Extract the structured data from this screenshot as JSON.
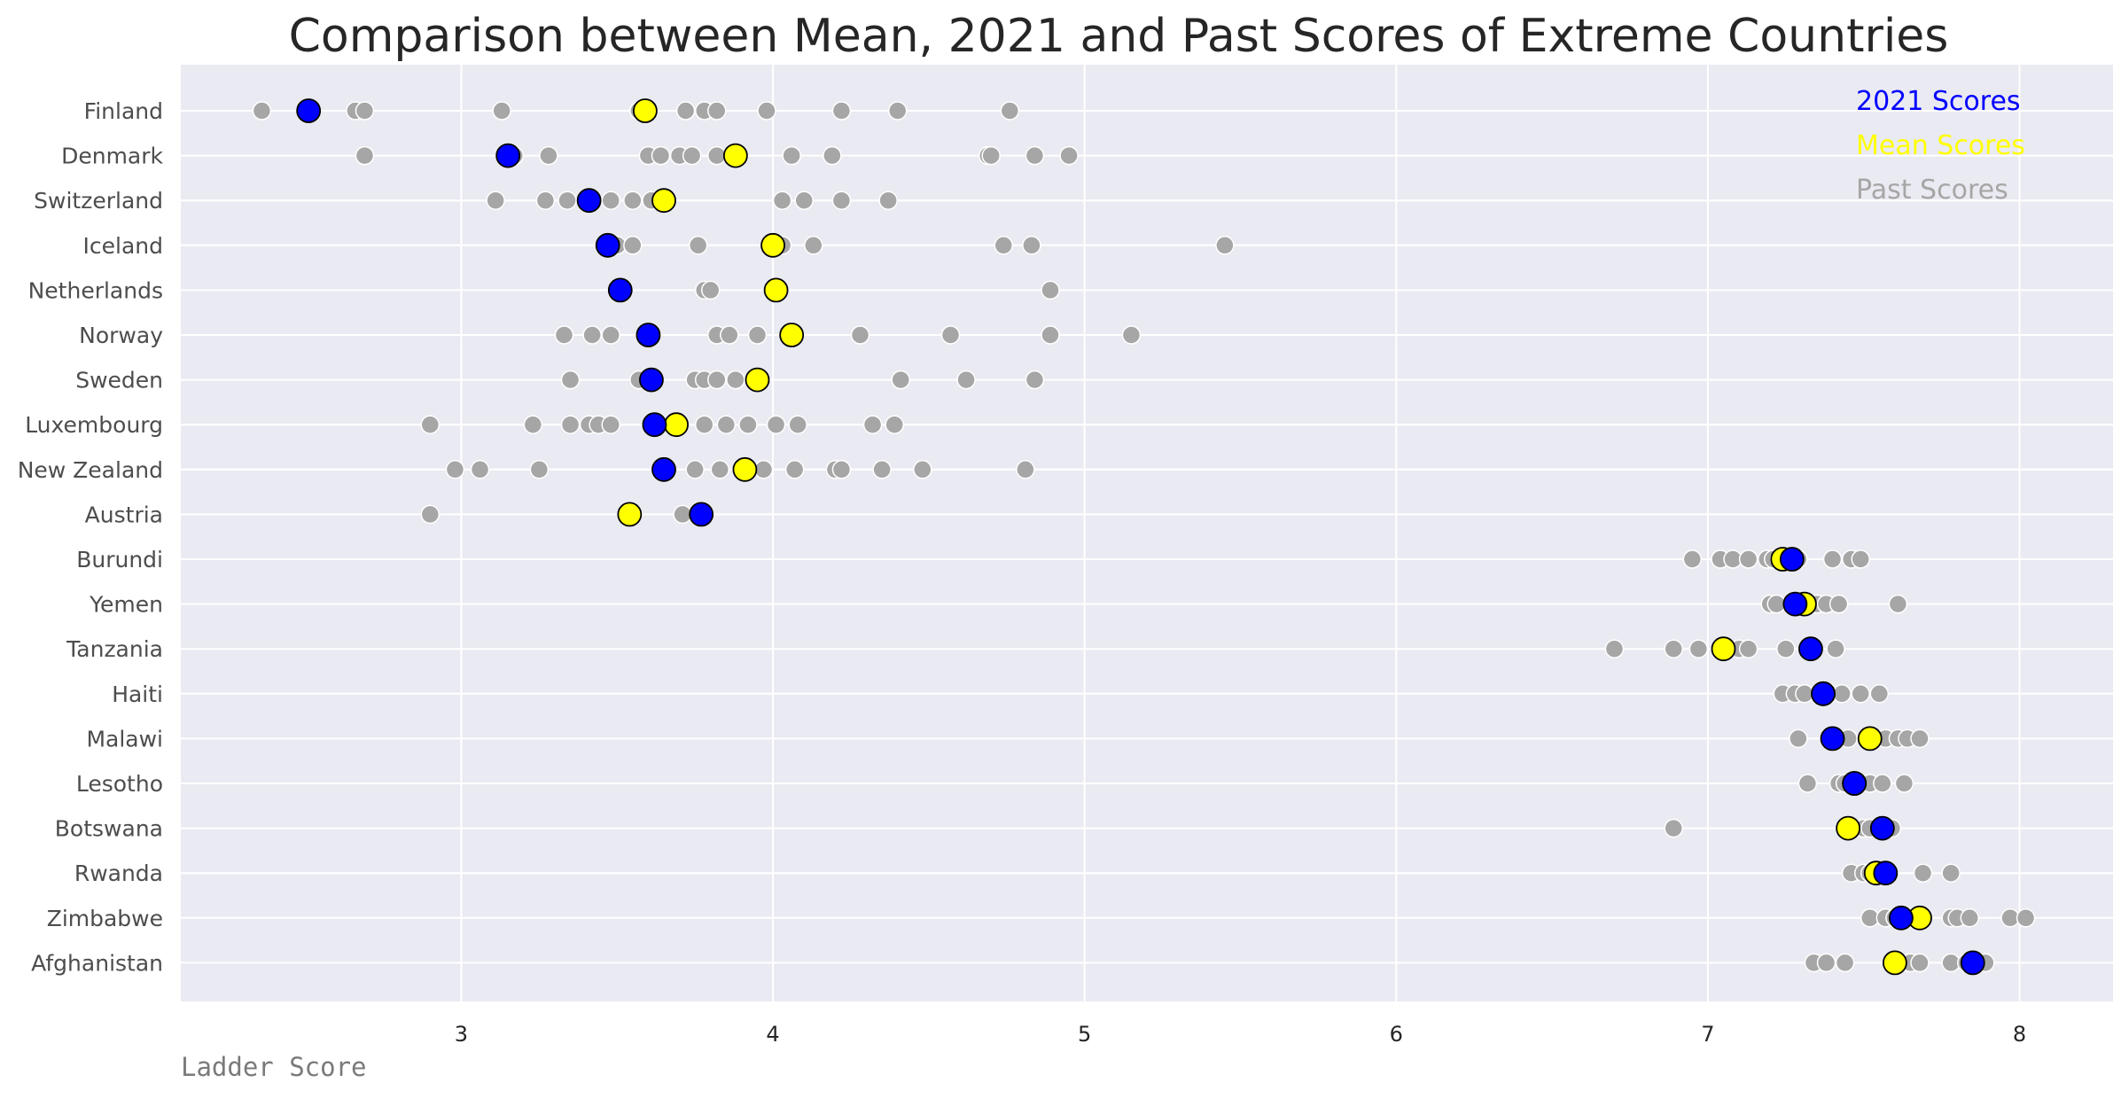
{
  "chart_data": {
    "type": "scatter",
    "title": "Comparison between Mean, 2021 and Past Scores of Extreme Countries",
    "xlabel": "Ladder Score",
    "ylabel": "",
    "xlim": [
      2.1,
      8.3
    ],
    "xticks": [
      3,
      4,
      5,
      6,
      7,
      8
    ],
    "grid": true,
    "legend_position": "top-right",
    "categories": [
      "Finland",
      "Denmark",
      "Switzerland",
      "Iceland",
      "Netherlands",
      "Norway",
      "Sweden",
      "Luxembourg",
      "New Zealand",
      "Austria",
      "Burundi",
      "Yemen",
      "Tanzania",
      "Haiti",
      "Malawi",
      "Lesotho",
      "Botswana",
      "Rwanda",
      "Zimbabwe",
      "Afghanistan"
    ],
    "series": [
      {
        "name": "2021 Scores",
        "color": "#0000ff",
        "values": [
          2.51,
          3.15,
          3.41,
          3.47,
          3.51,
          3.6,
          3.61,
          3.62,
          3.65,
          3.77,
          7.27,
          7.28,
          7.33,
          7.37,
          7.4,
          7.47,
          7.56,
          7.57,
          7.62,
          7.85
        ]
      },
      {
        "name": "Mean Scores",
        "color": "#ffff00",
        "values": [
          3.59,
          3.88,
          3.65,
          4.0,
          4.01,
          4.06,
          3.95,
          3.69,
          3.91,
          3.54,
          7.24,
          7.31,
          7.05,
          7.37,
          7.52,
          7.47,
          7.45,
          7.54,
          7.68,
          7.6
        ]
      },
      {
        "name": "Past Scores",
        "color": "#a6a6a6",
        "values": [
          [
            2.36,
            2.66,
            2.69,
            3.13,
            3.57,
            3.72,
            3.78,
            3.82,
            3.98,
            4.22,
            4.4,
            4.76
          ],
          [
            2.69,
            3.17,
            3.28,
            3.6,
            3.64,
            3.7,
            3.74,
            3.82,
            4.06,
            4.19,
            4.69,
            4.7,
            4.84,
            4.95
          ],
          [
            3.11,
            3.27,
            3.34,
            3.48,
            3.55,
            3.61,
            4.03,
            4.1,
            4.22,
            4.37
          ],
          [
            3.5,
            3.55,
            3.76,
            4.03,
            4.13,
            4.74,
            4.83,
            5.45
          ],
          [
            3.78,
            3.8,
            4.89
          ],
          [
            3.33,
            3.42,
            3.48,
            3.82,
            3.86,
            3.95,
            4.28,
            4.57,
            4.89,
            5.15
          ],
          [
            3.35,
            3.57,
            3.75,
            3.78,
            3.82,
            3.88,
            4.41,
            4.62,
            4.84
          ],
          [
            2.9,
            3.23,
            3.35,
            3.41,
            3.44,
            3.48,
            3.78,
            3.85,
            3.92,
            4.01,
            4.08,
            4.32,
            4.39
          ],
          [
            2.98,
            3.06,
            3.25,
            3.75,
            3.83,
            3.97,
            4.07,
            4.2,
            4.22,
            4.35,
            4.48,
            4.81
          ],
          [
            2.9,
            3.71
          ],
          [
            6.95,
            7.04,
            7.08,
            7.13,
            7.19,
            7.21,
            7.23,
            7.25,
            7.29,
            7.4,
            7.46,
            7.49
          ],
          [
            7.2,
            7.22,
            7.35,
            7.38,
            7.42,
            7.61
          ],
          [
            6.7,
            6.89,
            6.97,
            7.1,
            7.13,
            7.25,
            7.41
          ],
          [
            7.24,
            7.28,
            7.31,
            7.36,
            7.39,
            7.43,
            7.49,
            7.55
          ],
          [
            7.29,
            7.45,
            7.57,
            7.61,
            7.64,
            7.68
          ],
          [
            7.32,
            7.42,
            7.44,
            7.48,
            7.52,
            7.56,
            7.63
          ],
          [
            6.89,
            7.5,
            7.52,
            7.59
          ],
          [
            7.46,
            7.5,
            7.52,
            7.69,
            7.78
          ],
          [
            7.52,
            7.57,
            7.6,
            7.65,
            7.78,
            7.8,
            7.84,
            7.97,
            8.02
          ],
          [
            7.34,
            7.38,
            7.44,
            7.65,
            7.68,
            7.78,
            7.83,
            7.89
          ]
        ]
      }
    ]
  }
}
